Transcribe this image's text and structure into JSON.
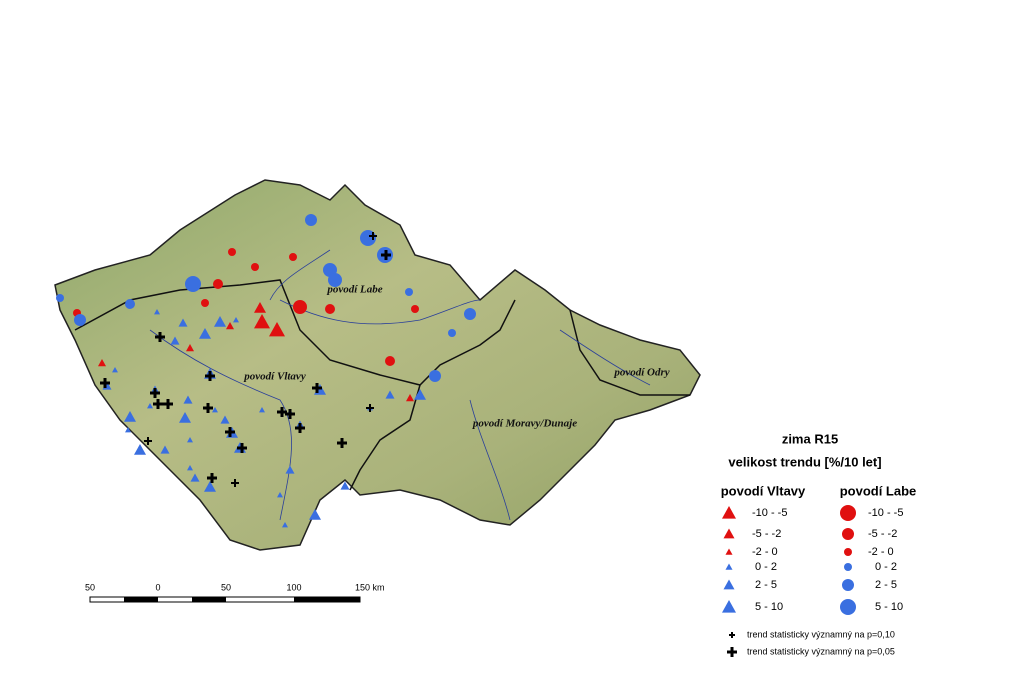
{
  "map": {
    "regions": [
      "povodí Labe",
      "povodí Vltavy",
      "povodí Moravy/Dunaje",
      "povodí Odry"
    ]
  },
  "legend": {
    "title": "zima R15",
    "subtitle": "velikost trendu [%/10 let]",
    "vltava": {
      "heading": "povodí Vltavy",
      "classes": [
        "-10 - -5",
        "-5 - -2",
        "-2 - 0",
        "0 - 2",
        "2 - 5",
        "5 - 10"
      ]
    },
    "labe": {
      "heading": "povodí Labe",
      "classes": [
        "-10 - -5",
        "-5 - -2",
        "-2 - 0",
        "0 - 2",
        "2 - 5",
        "5 - 10"
      ]
    },
    "significance": [
      "trend statisticky významný na p=0,10",
      "trend statisticky významný na p=0,05"
    ]
  },
  "scale_bar": {
    "labels": [
      "50",
      "0",
      "50",
      "100",
      "150 km"
    ]
  }
}
